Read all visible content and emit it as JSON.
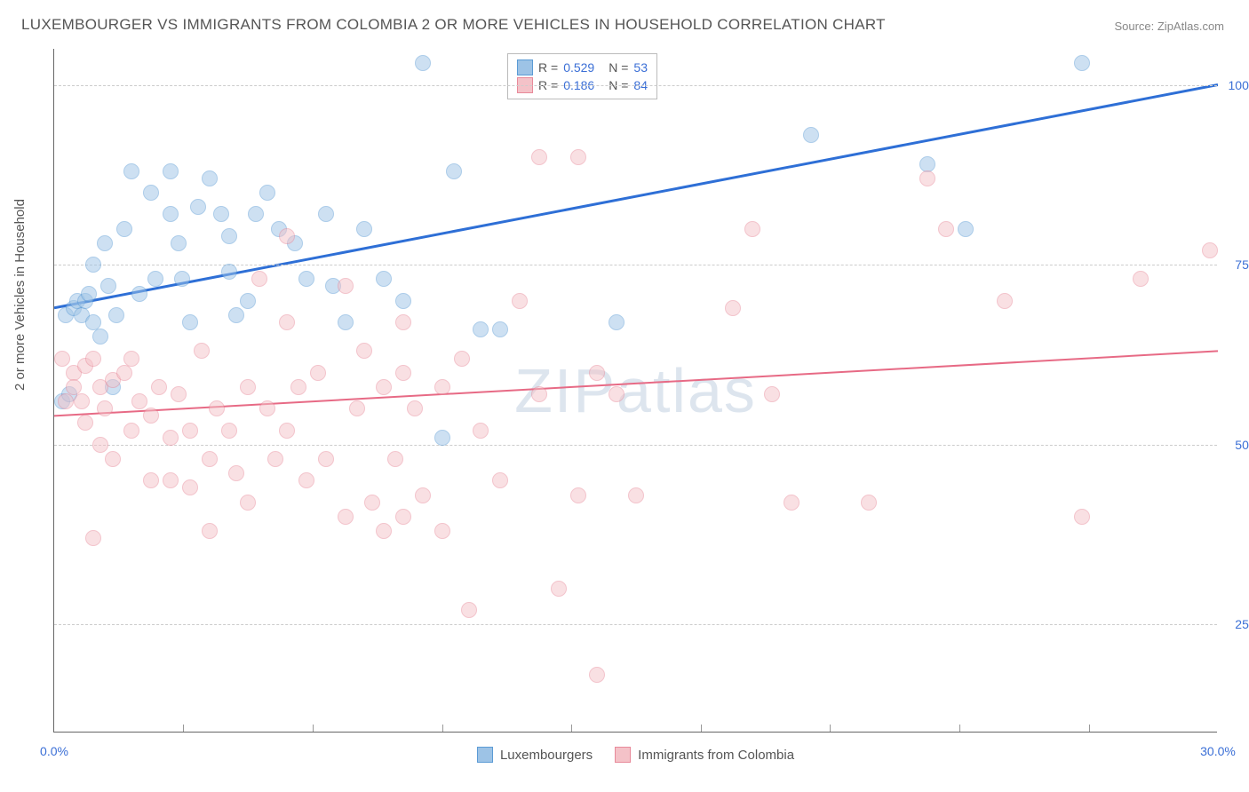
{
  "title": "LUXEMBOURGER VS IMMIGRANTS FROM COLOMBIA 2 OR MORE VEHICLES IN HOUSEHOLD CORRELATION CHART",
  "source": "Source: ZipAtlas.com",
  "watermark": "ZIPatlas",
  "ylabel": "2 or more Vehicles in Household",
  "chart": {
    "type": "scatter",
    "xlim": [
      0,
      30
    ],
    "ylim": [
      10,
      105
    ],
    "xticks": [
      {
        "val": 0,
        "label": "0.0%"
      },
      {
        "val": 30,
        "label": "30.0%"
      }
    ],
    "xminor": [
      3.33,
      6.67,
      10,
      13.33,
      16.67,
      20,
      23.33,
      26.67
    ],
    "yticks": [
      {
        "val": 25,
        "label": "25.0%"
      },
      {
        "val": 50,
        "label": "50.0%"
      },
      {
        "val": 75,
        "label": "75.0%"
      },
      {
        "val": 100,
        "label": "100.0%"
      }
    ],
    "background_color": "#ffffff",
    "grid_color": "#cccccc",
    "marker_radius": 9,
    "marker_opacity": 0.5,
    "series": [
      {
        "name": "Luxembourgers",
        "color_fill": "#9dc3e6",
        "color_stroke": "#5b9bd5",
        "R": "0.529",
        "N": "53",
        "trend": {
          "x0": 0,
          "y0": 69,
          "x1": 30,
          "y1": 100,
          "color": "#2e6fd6",
          "width": 3
        },
        "points": [
          [
            0.3,
            68
          ],
          [
            0.5,
            69
          ],
          [
            0.6,
            70
          ],
          [
            0.7,
            68
          ],
          [
            0.8,
            70
          ],
          [
            0.9,
            71
          ],
          [
            1.0,
            75
          ],
          [
            1.0,
            67
          ],
          [
            1.2,
            65
          ],
          [
            1.3,
            78
          ],
          [
            1.4,
            72
          ],
          [
            1.5,
            58
          ],
          [
            1.6,
            68
          ],
          [
            1.8,
            80
          ],
          [
            2.0,
            88
          ],
          [
            2.5,
            85
          ],
          [
            2.2,
            71
          ],
          [
            2.6,
            73
          ],
          [
            3.0,
            88
          ],
          [
            3.0,
            82
          ],
          [
            3.2,
            78
          ],
          [
            3.3,
            73
          ],
          [
            3.5,
            67
          ],
          [
            3.7,
            83
          ],
          [
            4.0,
            87
          ],
          [
            4.3,
            82
          ],
          [
            4.5,
            74
          ],
          [
            4.5,
            79
          ],
          [
            4.7,
            68
          ],
          [
            5.0,
            70
          ],
          [
            5.2,
            82
          ],
          [
            5.5,
            85
          ],
          [
            5.8,
            80
          ],
          [
            6.2,
            78
          ],
          [
            6.5,
            73
          ],
          [
            7.0,
            82
          ],
          [
            7.2,
            72
          ],
          [
            7.5,
            67
          ],
          [
            8.0,
            80
          ],
          [
            8.5,
            73
          ],
          [
            9.0,
            70
          ],
          [
            9.5,
            103
          ],
          [
            10.3,
            88
          ],
          [
            10.0,
            51
          ],
          [
            11.0,
            66
          ],
          [
            11.5,
            66
          ],
          [
            14.5,
            67
          ],
          [
            19.5,
            93
          ],
          [
            22.5,
            89
          ],
          [
            23.5,
            80
          ],
          [
            26.5,
            103
          ],
          [
            0.2,
            56
          ],
          [
            0.4,
            57
          ]
        ]
      },
      {
        "name": "Immigrants from Colombia",
        "color_fill": "#f4c2c8",
        "color_stroke": "#e88a9a",
        "R": "0.186",
        "N": "84",
        "trend": {
          "x0": 0,
          "y0": 54,
          "x1": 30,
          "y1": 63,
          "color": "#e76a85",
          "width": 2
        },
        "points": [
          [
            0.2,
            62
          ],
          [
            0.5,
            60
          ],
          [
            0.5,
            58
          ],
          [
            0.7,
            56
          ],
          [
            0.8,
            61
          ],
          [
            1.0,
            62
          ],
          [
            1.0,
            37
          ],
          [
            1.2,
            58
          ],
          [
            1.3,
            55
          ],
          [
            1.5,
            59
          ],
          [
            1.5,
            48
          ],
          [
            1.8,
            60
          ],
          [
            2.0,
            52
          ],
          [
            2.0,
            62
          ],
          [
            2.2,
            56
          ],
          [
            2.5,
            54
          ],
          [
            2.5,
            45
          ],
          [
            2.7,
            58
          ],
          [
            3.0,
            51
          ],
          [
            3.0,
            45
          ],
          [
            3.2,
            57
          ],
          [
            3.5,
            52
          ],
          [
            3.5,
            44
          ],
          [
            3.8,
            63
          ],
          [
            4.0,
            48
          ],
          [
            4.2,
            55
          ],
          [
            4.5,
            52
          ],
          [
            4.7,
            46
          ],
          [
            5.0,
            58
          ],
          [
            5.0,
            42
          ],
          [
            5.3,
            73
          ],
          [
            5.5,
            55
          ],
          [
            5.7,
            48
          ],
          [
            6.0,
            79
          ],
          [
            6.0,
            52
          ],
          [
            6.3,
            58
          ],
          [
            6.5,
            45
          ],
          [
            6.8,
            60
          ],
          [
            7.0,
            48
          ],
          [
            7.5,
            72
          ],
          [
            7.5,
            40
          ],
          [
            7.8,
            55
          ],
          [
            8.0,
            63
          ],
          [
            8.2,
            42
          ],
          [
            8.5,
            58
          ],
          [
            8.8,
            48
          ],
          [
            9.0,
            67
          ],
          [
            9.0,
            40
          ],
          [
            9.3,
            55
          ],
          [
            9.5,
            43
          ],
          [
            10.0,
            58
          ],
          [
            10.0,
            38
          ],
          [
            10.7,
            27
          ],
          [
            11.0,
            52
          ],
          [
            11.5,
            45
          ],
          [
            12.5,
            90
          ],
          [
            12.5,
            57
          ],
          [
            13.0,
            30
          ],
          [
            13.5,
            43
          ],
          [
            14.0,
            60
          ],
          [
            14.0,
            18
          ],
          [
            14.5,
            57
          ],
          [
            15.0,
            43
          ],
          [
            17.5,
            69
          ],
          [
            18.0,
            80
          ],
          [
            18.5,
            57
          ],
          [
            19.0,
            42
          ],
          [
            21.0,
            42
          ],
          [
            22.5,
            87
          ],
          [
            23.0,
            80
          ],
          [
            24.5,
            70
          ],
          [
            26.5,
            40
          ],
          [
            28.0,
            73
          ],
          [
            29.8,
            77
          ],
          [
            0.3,
            56
          ],
          [
            0.8,
            53
          ],
          [
            1.2,
            50
          ],
          [
            4.0,
            38
          ],
          [
            6.0,
            67
          ],
          [
            8.5,
            38
          ],
          [
            9.0,
            60
          ],
          [
            10.5,
            62
          ],
          [
            12.0,
            70
          ],
          [
            13.5,
            90
          ]
        ]
      }
    ]
  }
}
